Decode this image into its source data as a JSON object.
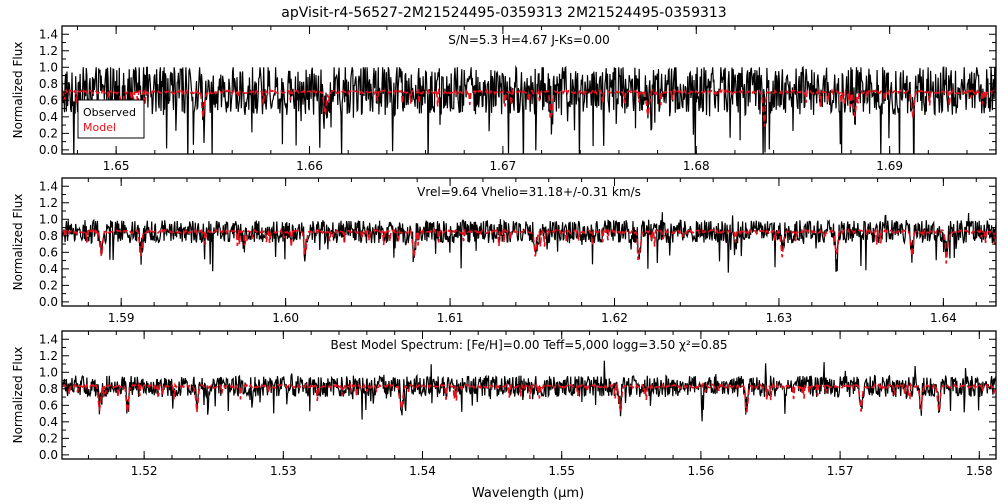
{
  "page_title": "apVisit-r4-56527-2M21524495-0359313   2M21524495-0359313",
  "x_axis_label": "Wavelength (μm)",
  "colors": {
    "observed": "#000000",
    "model": "#e8101a",
    "frame": "#000000"
  },
  "chart_data": [
    {
      "type": "line",
      "title": "",
      "annotation": "S/N=5.3  H=4.67  J-Ks=0.00",
      "ylabel": "Normalized Flux",
      "xlabel": "",
      "xlim": [
        1.6472,
        1.6955
      ],
      "ylim": [
        -0.05,
        1.5
      ],
      "x_ticks": [
        1.65,
        1.66,
        1.67,
        1.68,
        1.69
      ],
      "x_tick_labels": [
        "1.65",
        "1.66",
        "1.67",
        "1.68",
        "1.69"
      ],
      "y_ticks": [
        0.0,
        0.2,
        0.4,
        0.6,
        0.8,
        1.0,
        1.2,
        1.4
      ],
      "y_tick_labels": [
        "0.0",
        "0.2",
        "0.4",
        "0.6",
        "0.8",
        "1.0",
        "1.2",
        "1.4"
      ],
      "legend": {
        "placement": "bottom-left",
        "entries": [
          "Observed",
          "Model"
        ]
      },
      "series": [
        {
          "name": "Observed",
          "mean_level": 0.72,
          "noise_amplitude": 0.3,
          "clip_high": 1.0
        },
        {
          "name": "Model",
          "mean_level": 0.7,
          "dips": [
            1.6503,
            1.6545,
            1.6608,
            1.6725,
            1.6775,
            1.6835,
            1.6882,
            1.6912
          ]
        }
      ],
      "grid": false
    },
    {
      "type": "line",
      "title": "",
      "annotation": "Vrel=9.64  Vhelio=31.18+/-0.31  km/s",
      "ylabel": "Normalized Flux",
      "xlabel": "",
      "xlim": [
        1.5864,
        1.6432
      ],
      "ylim": [
        -0.05,
        1.5
      ],
      "x_ticks": [
        1.59,
        1.6,
        1.61,
        1.62,
        1.63,
        1.64
      ],
      "x_tick_labels": [
        "1.59",
        "1.60",
        "1.61",
        "1.62",
        "1.63",
        "1.64"
      ],
      "y_ticks": [
        0.0,
        0.2,
        0.4,
        0.6,
        0.8,
        1.0,
        1.2,
        1.4
      ],
      "y_tick_labels": [
        "0.0",
        "0.2",
        "0.4",
        "0.6",
        "0.8",
        "1.0",
        "1.2",
        "1.4"
      ],
      "series": [
        {
          "name": "Observed",
          "mean_level": 0.85,
          "noise_amplitude": 0.14
        },
        {
          "name": "Model",
          "mean_level": 0.85,
          "dips": [
            1.5888,
            1.5912,
            1.6012,
            1.6078,
            1.6152,
            1.6215,
            1.6302,
            1.6335,
            1.6381,
            1.6402
          ]
        }
      ],
      "grid": false
    },
    {
      "type": "line",
      "title": "",
      "annotation": "Best Model Spectrum: [Fe/H]=0.00  Teff=5,000  logg=3.50   χ²=0.85",
      "ylabel": "Normalized Flux",
      "xlabel": "Wavelength (μm)",
      "xlim": [
        1.5141,
        1.5812
      ],
      "ylim": [
        -0.05,
        1.5
      ],
      "x_ticks": [
        1.52,
        1.53,
        1.54,
        1.55,
        1.56,
        1.57,
        1.58
      ],
      "x_tick_labels": [
        "1.52",
        "1.53",
        "1.54",
        "1.55",
        "1.56",
        "1.57",
        "1.58"
      ],
      "y_ticks": [
        0.0,
        0.2,
        0.4,
        0.6,
        0.8,
        1.0,
        1.2,
        1.4
      ],
      "y_tick_labels": [
        "0.0",
        "0.2",
        "0.4",
        "0.6",
        "0.8",
        "1.0",
        "1.2",
        "1.4"
      ],
      "series": [
        {
          "name": "Observed",
          "mean_level": 0.83,
          "noise_amplitude": 0.13
        },
        {
          "name": "Model",
          "mean_level": 0.83,
          "dips": [
            1.5168,
            1.5188,
            1.5238,
            1.5385,
            1.5542,
            1.5633,
            1.5715,
            1.5758,
            1.5771
          ]
        }
      ],
      "grid": false
    }
  ]
}
